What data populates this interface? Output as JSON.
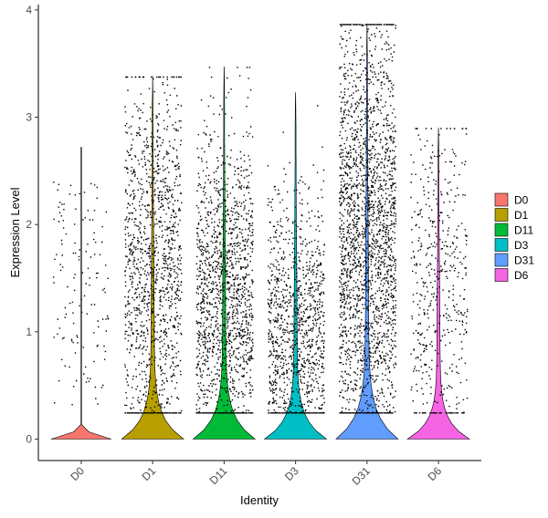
{
  "chart_data": {
    "type": "violin",
    "title": "",
    "xlabel": "Identity",
    "ylabel": "Expression Level",
    "ylim": [
      -0.2,
      4.05
    ],
    "yticks": [
      0,
      1,
      2,
      3,
      4
    ],
    "grid": false,
    "legend_position": "right",
    "categories": [
      "D0",
      "D1",
      "D11",
      "D3",
      "D31",
      "D6"
    ],
    "colors": [
      "#F8766D",
      "#B79F00",
      "#00BA38",
      "#00BFC4",
      "#619CFF",
      "#F564E3"
    ],
    "series": [
      {
        "name": "D0",
        "max": 2.72,
        "cells_estimate": 250,
        "zero_fraction": 0.95,
        "upper_quartile": 0.0
      },
      {
        "name": "D1",
        "max": 3.38,
        "cells_estimate": 2400,
        "zero_fraction": 0.55,
        "upper_quartile": 1.6
      },
      {
        "name": "D11",
        "max": 3.47,
        "cells_estimate": 2800,
        "zero_fraction": 0.55,
        "upper_quartile": 1.3
      },
      {
        "name": "D3",
        "max": 3.23,
        "cells_estimate": 2100,
        "zero_fraction": 0.6,
        "upper_quartile": 1.0
      },
      {
        "name": "D31",
        "max": 3.87,
        "cells_estimate": 4200,
        "zero_fraction": 0.45,
        "upper_quartile": 1.9
      },
      {
        "name": "D6",
        "max": 2.9,
        "cells_estimate": 900,
        "zero_fraction": 0.55,
        "upper_quartile": 1.4
      }
    ]
  }
}
